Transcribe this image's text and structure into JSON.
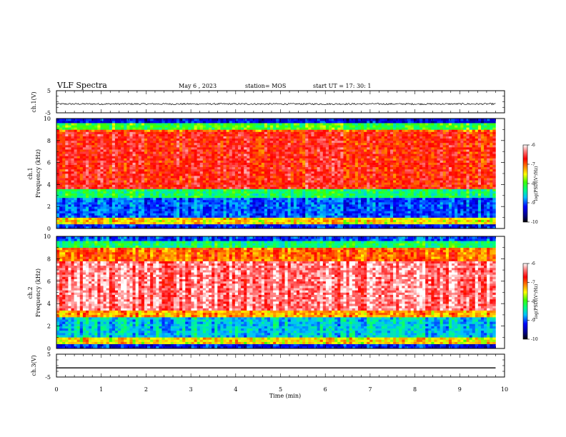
{
  "header": {
    "title": "VLF Spectra",
    "date": "May 6  , 2023",
    "station": "station= MOS",
    "start_ut": "start  UT =   17: 30: 1"
  },
  "chart_data": [
    {
      "type": "line",
      "panel": "ch1-waveform",
      "ylabel": "ch.1(V)",
      "yticks": [
        "5",
        "-5"
      ],
      "ylim": [
        -5,
        5
      ],
      "x": [
        0,
        9.8
      ],
      "trace_level": -1.0,
      "color": "#000000"
    },
    {
      "type": "heatmap",
      "panel": "ch1-spectrogram",
      "ylabel": "ch.1\nFrequency (kHz)",
      "yticks": [
        "0",
        "2",
        "4",
        "6",
        "8",
        "10"
      ],
      "ylim": [
        0,
        10
      ],
      "xlim": [
        0,
        10
      ],
      "data_extent_min": 9.8,
      "bands": [
        {
          "from_khz": 0,
          "to_khz": 0.5,
          "level": -9.2
        },
        {
          "from_khz": 0.5,
          "to_khz": 0.9,
          "level": -7.4
        },
        {
          "from_khz": 0.9,
          "to_khz": 2.8,
          "level": -9.0
        },
        {
          "from_khz": 2.8,
          "to_khz": 3.6,
          "level": -8.2
        },
        {
          "from_khz": 3.6,
          "to_khz": 8.8,
          "level": -6.7
        },
        {
          "from_khz": 8.8,
          "to_khz": 9.1,
          "level": -7.0
        },
        {
          "from_khz": 9.1,
          "to_khz": 9.6,
          "level": -8.0
        },
        {
          "from_khz": 9.6,
          "to_khz": 10,
          "level": -9.3
        }
      ],
      "colorbar": {
        "label": "log(PSD)(V²/Hz)",
        "ticks": [
          "-6",
          "-7",
          "-8",
          "-9",
          "-10"
        ],
        "range": [
          -10,
          -6
        ]
      }
    },
    {
      "type": "heatmap",
      "panel": "ch2-spectrogram",
      "ylabel": "ch.2\nFrequency (kHz)",
      "yticks": [
        "0",
        "2",
        "4",
        "6",
        "8",
        "10"
      ],
      "ylim": [
        0,
        10
      ],
      "xlim": [
        0,
        10
      ],
      "data_extent_min": 9.8,
      "bands": [
        {
          "from_khz": 0,
          "to_khz": 0.4,
          "level": -9.2
        },
        {
          "from_khz": 0.4,
          "to_khz": 0.9,
          "level": -7.4
        },
        {
          "from_khz": 0.9,
          "to_khz": 2.8,
          "level": -8.6
        },
        {
          "from_khz": 2.8,
          "to_khz": 3.5,
          "level": -7.2
        },
        {
          "from_khz": 3.5,
          "to_khz": 7.8,
          "level": -6.3
        },
        {
          "from_khz": 7.8,
          "to_khz": 9.0,
          "level": -7.0
        },
        {
          "from_khz": 9.0,
          "to_khz": 9.7,
          "level": -8.2
        },
        {
          "from_khz": 9.7,
          "to_khz": 10,
          "level": -9.0
        }
      ],
      "colorbar": {
        "label": "log(PSD)(V²/Hz)",
        "ticks": [
          "-6",
          "-7",
          "-8",
          "-9",
          "-10"
        ],
        "range": [
          -10,
          -6
        ]
      }
    },
    {
      "type": "line",
      "panel": "ch3-waveform",
      "ylabel": "ch.3(V)",
      "yticks": [
        "5",
        "-5"
      ],
      "ylim": [
        -5,
        5
      ],
      "x": [
        0,
        9.8
      ],
      "trace_level": -1.0,
      "color": "#000000"
    }
  ],
  "xaxis": {
    "label": "Time  (min)",
    "ticks": [
      "0",
      "1",
      "2",
      "3",
      "4",
      "5",
      "6",
      "7",
      "8",
      "9",
      "10"
    ],
    "range": [
      0,
      10
    ]
  },
  "colormap": [
    "#000080",
    "#0000ff",
    "#00b0ff",
    "#00ffd0",
    "#00ff40",
    "#80ff00",
    "#ffff00",
    "#ffa000",
    "#ff3000",
    "#e00000",
    "#ff8080",
    "#ffffff"
  ]
}
